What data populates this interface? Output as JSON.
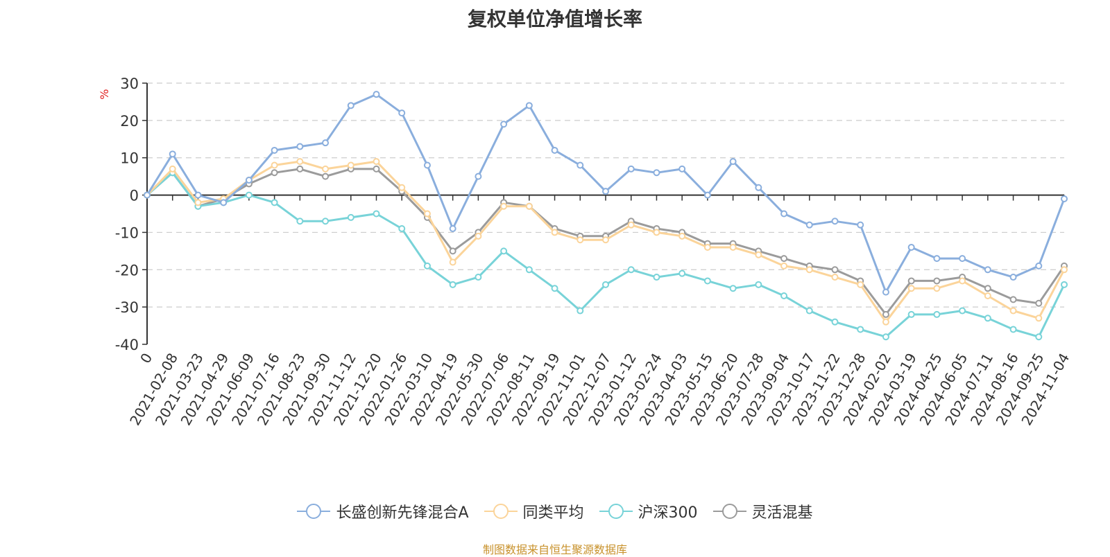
{
  "title": "复权单位净值增长率",
  "source": "制图数据来自恒生聚源数据库",
  "chart_data": {
    "type": "line",
    "title": "复权单位净值增长率",
    "ylabel": "%",
    "ylim": [
      -40,
      30
    ],
    "yticks": [
      30,
      20,
      10,
      0,
      -10,
      -20,
      -30,
      -40
    ],
    "grid": true,
    "legend_position": "bottom",
    "categories": [
      "0",
      "2021-02-08",
      "2021-03-23",
      "2021-04-29",
      "2021-06-09",
      "2021-07-16",
      "2021-08-23",
      "2021-09-30",
      "2021-11-12",
      "2021-12-20",
      "2022-01-26",
      "2022-03-10",
      "2022-04-19",
      "2022-05-30",
      "2022-07-06",
      "2022-08-11",
      "2022-09-19",
      "2022-11-01",
      "2022-12-07",
      "2023-01-12",
      "2023-02-24",
      "2023-04-03",
      "2023-05-15",
      "2023-06-20",
      "2023-07-28",
      "2023-09-04",
      "2023-10-17",
      "2023-11-22",
      "2023-12-28",
      "2024-02-02",
      "2024-03-19",
      "2024-04-25",
      "2024-06-05",
      "2024-07-11",
      "2024-08-16",
      "2024-09-25",
      "2024-11-04"
    ],
    "series": [
      {
        "name": "长盛创新先锋混合A",
        "color": "#8aaedd",
        "values": [
          0,
          11,
          0,
          -2,
          4,
          12,
          13,
          14,
          24,
          27,
          22,
          8,
          -9,
          5,
          19,
          24,
          12,
          8,
          1,
          7,
          6,
          7,
          0,
          9,
          2,
          -5,
          -8,
          -7,
          -8,
          -26,
          -14,
          -17,
          -17,
          -20,
          -22,
          -19,
          -1
        ]
      },
      {
        "name": "同类平均",
        "color": "#fbd49a",
        "values": [
          0,
          7,
          -2,
          -1,
          4,
          8,
          9,
          7,
          8,
          9,
          2,
          -5,
          -18,
          -11,
          -3,
          -3,
          -10,
          -12,
          -12,
          -8,
          -10,
          -11,
          -14,
          -14,
          -16,
          -19,
          -20,
          -22,
          -24,
          -34,
          -25,
          -25,
          -23,
          -27,
          -31,
          -33,
          -20
        ]
      },
      {
        "name": "沪深300",
        "color": "#78d3d8",
        "values": [
          0,
          6,
          -3,
          -2,
          0,
          -2,
          -7,
          -7,
          -6,
          -5,
          -9,
          -19,
          -24,
          -22,
          -15,
          -20,
          -25,
          -31,
          -24,
          -20,
          -22,
          -21,
          -23,
          -25,
          -24,
          -27,
          -31,
          -34,
          -36,
          -38,
          -32,
          -32,
          -31,
          -33,
          -36,
          -38,
          -24
        ]
      },
      {
        "name": "灵活混基",
        "color": "#9b9b9b",
        "values": [
          0,
          6,
          -3,
          -1,
          3,
          6,
          7,
          5,
          7,
          7,
          1,
          -6,
          -15,
          -10,
          -2,
          -3,
          -9,
          -11,
          -11,
          -7,
          -9,
          -10,
          -13,
          -13,
          -15,
          -17,
          -19,
          -20,
          -23,
          -32,
          -23,
          -23,
          -22,
          -25,
          -28,
          -29,
          -19
        ]
      }
    ]
  }
}
